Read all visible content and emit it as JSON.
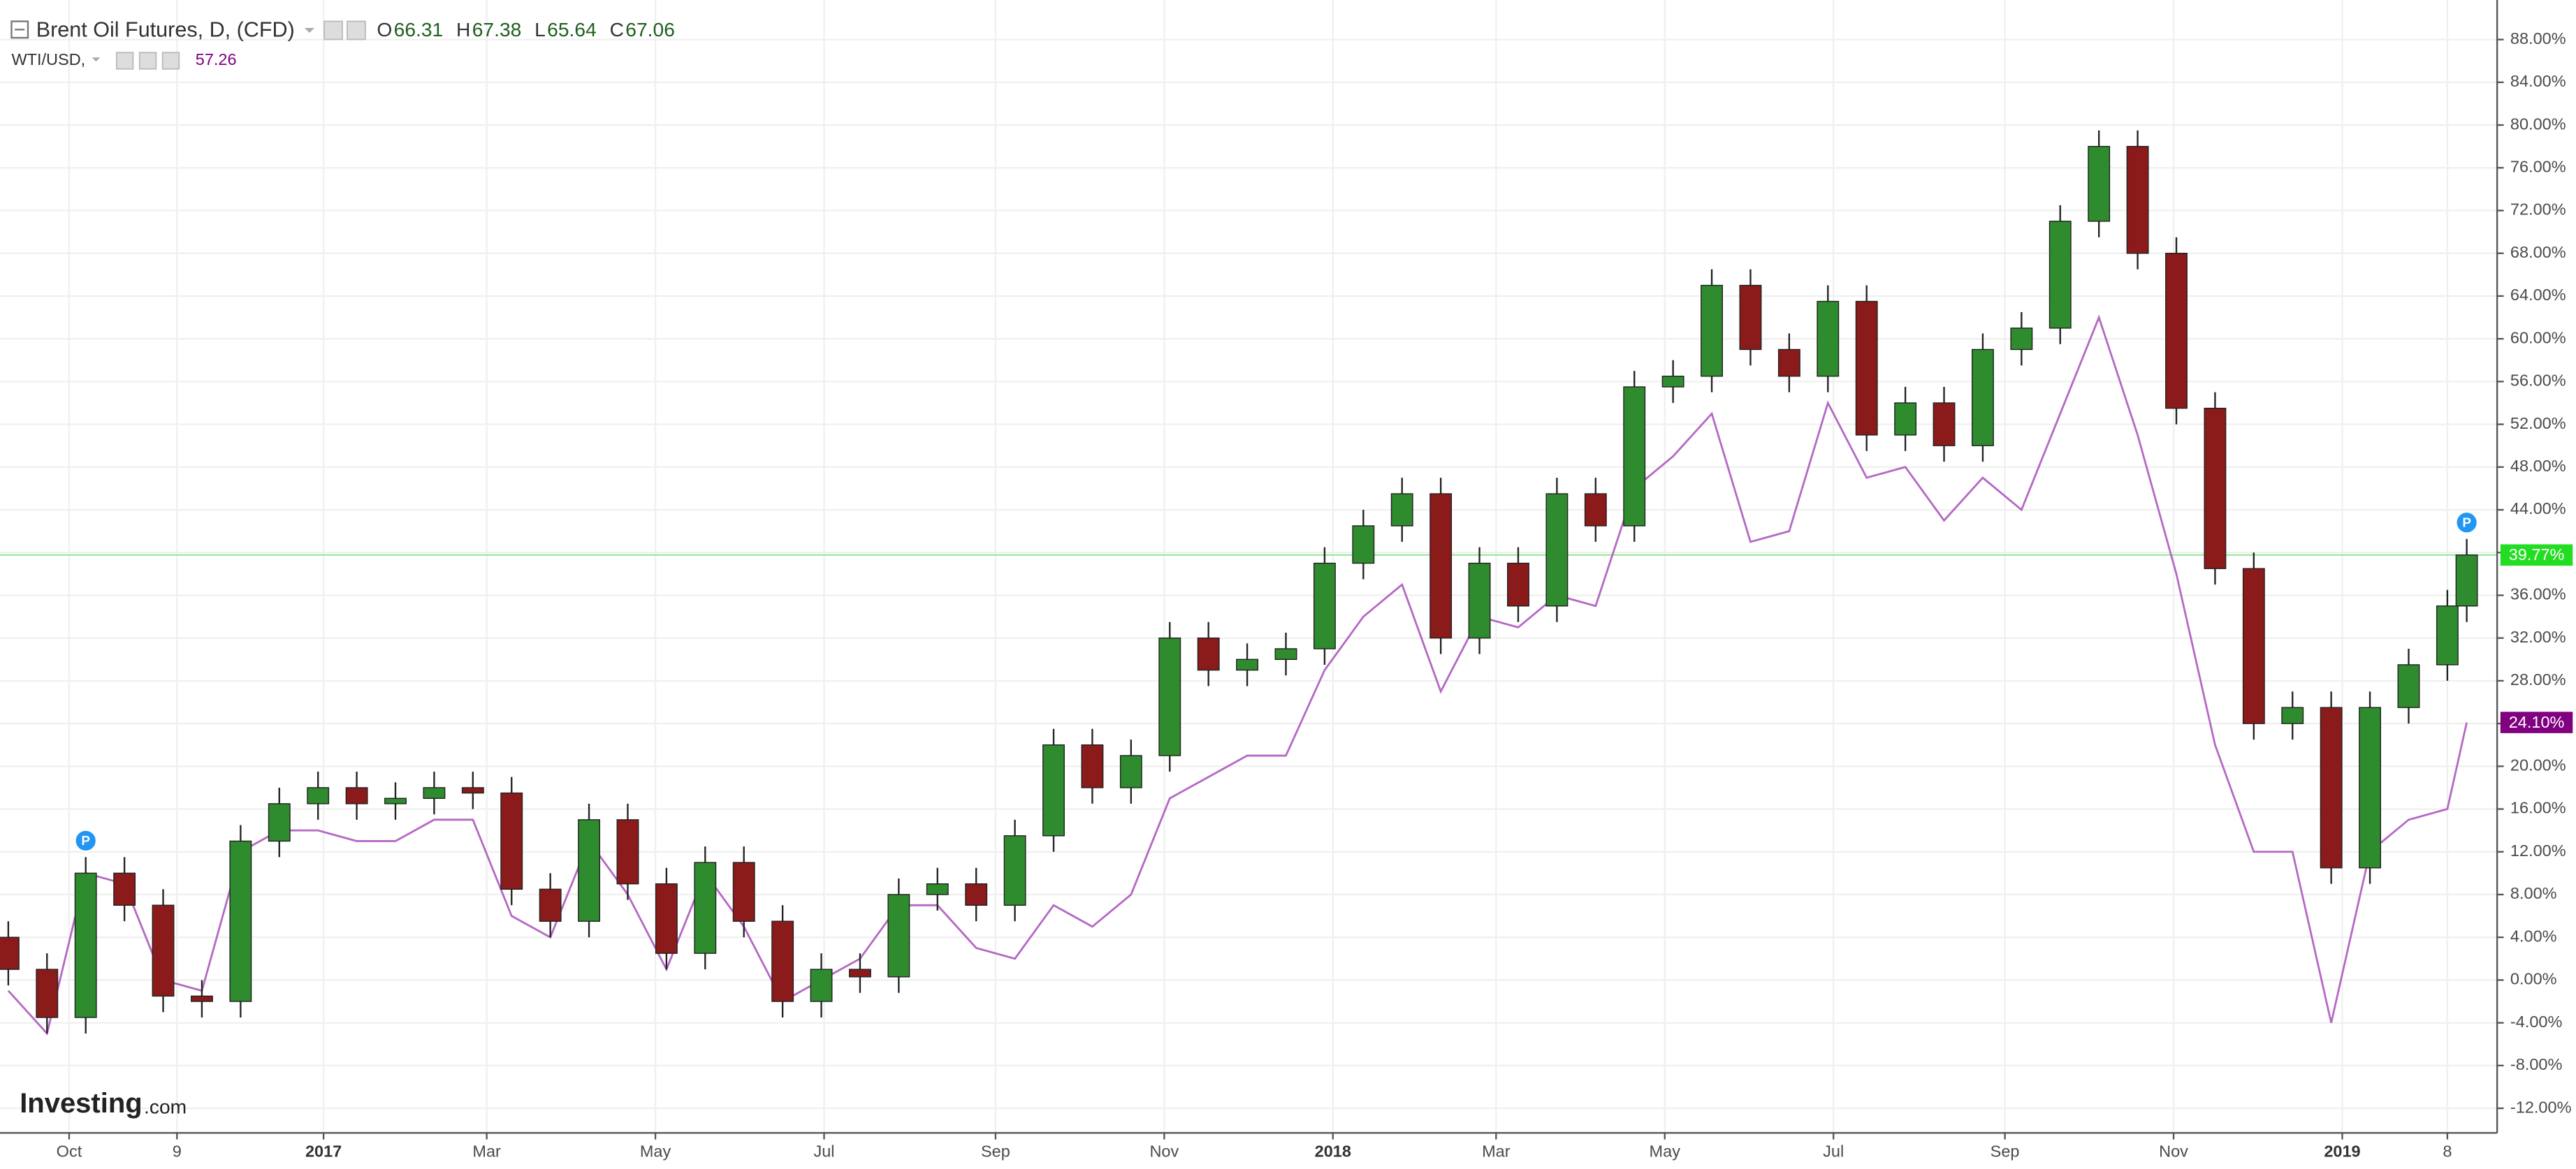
{
  "chart_data": {
    "type": "candlestick",
    "title": "Brent Oil Futures, D, (CFD)",
    "ohlc_header": [
      {
        "name": "O",
        "value": 66.31
      },
      {
        "name": "H",
        "value": 67.38
      },
      {
        "name": "L",
        "value": 65.64
      },
      {
        "name": "C",
        "value": 67.06
      }
    ],
    "x": [
      "2016-09-09",
      "2016-09-23",
      "2016-10-07",
      "2016-10-21",
      "2016-11-04",
      "2016-11-18",
      "2016-12-02",
      "2016-12-16",
      "2016-12-30",
      "2017-01-13",
      "2017-01-27",
      "2017-02-10",
      "2017-02-24",
      "2017-03-10",
      "2017-03-24",
      "2017-04-07",
      "2017-04-21",
      "2017-05-05",
      "2017-05-19",
      "2017-06-02",
      "2017-06-16",
      "2017-06-30",
      "2017-07-14",
      "2017-07-28",
      "2017-08-11",
      "2017-08-25",
      "2017-09-08",
      "2017-09-22",
      "2017-10-06",
      "2017-10-20",
      "2017-11-03",
      "2017-11-17",
      "2017-12-01",
      "2017-12-15",
      "2017-12-29",
      "2018-01-12",
      "2018-01-26",
      "2018-02-09",
      "2018-02-23",
      "2018-03-09",
      "2018-03-23",
      "2018-04-06",
      "2018-04-20",
      "2018-05-04",
      "2018-05-18",
      "2018-06-01",
      "2018-06-15",
      "2018-06-29",
      "2018-07-13",
      "2018-07-27",
      "2018-08-10",
      "2018-08-24",
      "2018-09-07",
      "2018-09-21",
      "2018-10-05",
      "2018-10-19",
      "2018-11-02",
      "2018-11-16",
      "2018-11-30",
      "2018-12-14",
      "2018-12-28",
      "2019-01-11",
      "2019-01-25",
      "2019-02-08",
      "2019-02-15"
    ],
    "candles": {
      "up_color": "#2e8b2e",
      "down_color": "#8b1a1a",
      "open": [
        4,
        1,
        -3.5,
        10,
        7,
        -1.5,
        -2,
        13,
        16.5,
        18,
        16.5,
        17,
        18,
        17.5,
        8.5,
        5.5,
        15,
        9,
        2.5,
        11,
        5.5,
        -2,
        1,
        0.3,
        8,
        9,
        7,
        13.5,
        22,
        18,
        21,
        32,
        29,
        30,
        31,
        39,
        42.5,
        45.5,
        32,
        39,
        35,
        45.5,
        42.5,
        55.5,
        56.5,
        65,
        59,
        56.5,
        63.5,
        51,
        54,
        50,
        59,
        61,
        71,
        78,
        68,
        53.5,
        38.5,
        24,
        25.5,
        10.5,
        25.5,
        29.5,
        35
      ],
      "high": [
        5.5,
        2.5,
        11.5,
        11.5,
        8.5,
        0,
        14.5,
        18,
        19.5,
        19.5,
        18.5,
        19.5,
        19.5,
        19,
        10,
        16.5,
        16.5,
        10.5,
        12.5,
        12.5,
        7,
        2.5,
        2.5,
        9.5,
        10.5,
        10.5,
        15,
        23.5,
        23.5,
        22.5,
        33.5,
        33.5,
        31.5,
        32.5,
        40.5,
        44,
        47,
        47,
        40.5,
        40.5,
        47,
        47,
        57,
        58,
        66.5,
        66.5,
        60.5,
        65,
        65,
        55.5,
        55.5,
        60.5,
        62.5,
        72.5,
        79.5,
        79.5,
        69.5,
        55,
        40,
        27,
        27,
        27,
        31,
        36.5,
        41.27
      ],
      "low": [
        -0.5,
        -5,
        -5,
        5.5,
        -3,
        -3.5,
        -3.5,
        11.5,
        15,
        15,
        15,
        15.5,
        16,
        7,
        4,
        4,
        7.5,
        1,
        1,
        4,
        -3.5,
        -3.5,
        -1.2,
        -1.2,
        6.5,
        5.5,
        5.5,
        12,
        16.5,
        16.5,
        19.5,
        27.5,
        27.5,
        28.5,
        29.5,
        37.5,
        41,
        30.5,
        30.5,
        33.5,
        33.5,
        41,
        41,
        54,
        55,
        57.5,
        55,
        55,
        49.5,
        49.5,
        48.5,
        48.5,
        57.5,
        59.5,
        69.5,
        66.5,
        52,
        37,
        22.5,
        22.5,
        9,
        9,
        24,
        28,
        33.5
      ],
      "close": [
        1,
        -3.5,
        10,
        7,
        -1.5,
        -2,
        13,
        16.5,
        18,
        16.5,
        17,
        18,
        17.5,
        8.5,
        5.5,
        15,
        9,
        2.5,
        11,
        5.5,
        -2,
        1,
        0.3,
        8,
        9,
        7,
        13.5,
        22,
        18,
        21,
        32,
        29,
        30,
        31,
        39,
        42.5,
        45.5,
        32,
        39,
        35,
        45.5,
        42.5,
        55.5,
        56.5,
        65,
        59,
        56.5,
        63.5,
        51,
        54,
        50,
        59,
        61,
        71,
        78,
        68,
        53.5,
        38.5,
        24,
        25.5,
        10.5,
        25.5,
        29.5,
        35,
        39.77
      ],
      "last": {
        "value": 39.77,
        "label": "39.77%",
        "color": "#22dd22"
      }
    },
    "line": {
      "name": "WTI/USD,",
      "header_value": 57.26,
      "color": "#b569c4",
      "values": [
        -1,
        -5,
        10,
        9,
        0,
        -1,
        12,
        14,
        14,
        13,
        13,
        15,
        15,
        6,
        4,
        13,
        8,
        1,
        10,
        5,
        -2,
        0,
        2,
        7,
        7,
        3,
        2,
        7,
        5,
        8,
        17,
        19,
        21,
        21,
        29,
        34,
        37,
        27,
        34,
        33,
        36,
        35,
        46,
        49,
        53,
        41,
        42,
        54,
        47,
        48,
        43,
        47,
        44,
        53,
        62,
        51,
        38,
        22,
        12,
        12,
        -4,
        12,
        15,
        16,
        24.1
      ],
      "last": {
        "value": 24.1,
        "label": "24.10%",
        "color": "#800080"
      }
    },
    "markers": [
      {
        "x": "2016-10-07",
        "label": "P"
      },
      {
        "x": "2019-02-15",
        "label": "P"
      }
    ],
    "xlim": [
      "2016-09-06",
      "2019-02-26"
    ],
    "xticks": [
      {
        "value": "2016-10-01",
        "label": "Oct"
      },
      {
        "value": "2016-11-09",
        "label": "9"
      },
      {
        "value": "2017-01-01",
        "label": "2017"
      },
      {
        "value": "2017-03-01",
        "label": "Mar"
      },
      {
        "value": "2017-05-01",
        "label": "May"
      },
      {
        "value": "2017-07-01",
        "label": "Jul"
      },
      {
        "value": "2017-09-01",
        "label": "Sep"
      },
      {
        "value": "2017-11-01",
        "label": "Nov"
      },
      {
        "value": "2018-01-01",
        "label": "2018"
      },
      {
        "value": "2018-03-01",
        "label": "Mar"
      },
      {
        "value": "2018-05-01",
        "label": "May"
      },
      {
        "value": "2018-07-01",
        "label": "Jul"
      },
      {
        "value": "2018-09-01",
        "label": "Sep"
      },
      {
        "value": "2018-11-01",
        "label": "Nov"
      },
      {
        "value": "2019-01-01",
        "label": "2019"
      },
      {
        "value": "2019-02-08",
        "label": "8"
      }
    ],
    "ylim": [
      -14.3,
      91.7
    ],
    "yticks": [
      {
        "value": -12,
        "label": "-12.00%"
      },
      {
        "value": -8,
        "label": "-8.00%"
      },
      {
        "value": -4,
        "label": "-4.00%"
      },
      {
        "value": 0,
        "label": "0.00%"
      },
      {
        "value": 4,
        "label": "4.00%"
      },
      {
        "value": 8,
        "label": "8.00%"
      },
      {
        "value": 12,
        "label": "12.00%"
      },
      {
        "value": 16,
        "label": "16.00%"
      },
      {
        "value": 20,
        "label": "20.00%"
      },
      {
        "value": 24,
        "label": "24.00%"
      },
      {
        "value": 28,
        "label": "28.00%"
      },
      {
        "value": 32,
        "label": "32.00%"
      },
      {
        "value": 36,
        "label": "36.00%"
      },
      {
        "value": 40,
        "label": "40.00%"
      },
      {
        "value": 44,
        "label": "44.00%"
      },
      {
        "value": 48,
        "label": "48.00%"
      },
      {
        "value": 52,
        "label": "52.00%"
      },
      {
        "value": 56,
        "label": "56.00%"
      },
      {
        "value": 60,
        "label": "60.00%"
      },
      {
        "value": 64,
        "label": "64.00%"
      },
      {
        "value": 68,
        "label": "68.00%"
      },
      {
        "value": 72,
        "label": "72.00%"
      },
      {
        "value": 76,
        "label": "76.00%"
      },
      {
        "value": 80,
        "label": "80.00%"
      },
      {
        "value": 84,
        "label": "84.00%"
      },
      {
        "value": 88,
        "label": "88.00%"
      }
    ],
    "grid": true,
    "watermark": {
      "brand": "Investing",
      "suffix": ".com"
    }
  }
}
